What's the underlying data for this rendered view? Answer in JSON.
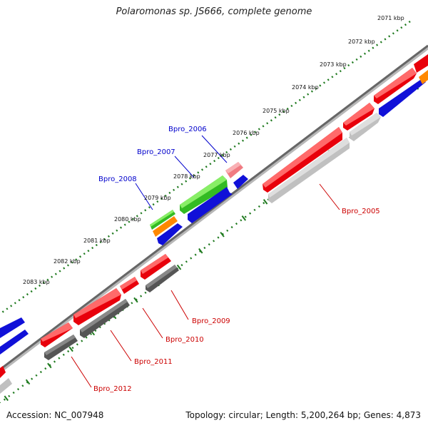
{
  "title": "Polaromonas sp. JS666, complete genome",
  "footer": {
    "accession": "Accession: NC_007948",
    "summary": "Topology: circular; Length: 5,200,264 bp; Genes: 4,873"
  },
  "colors": {
    "backbone": "#777777",
    "ticks": "#1f7a1f",
    "forward_cds": "#e8000b",
    "reverse_cds": "#1010d8",
    "grey_feature": "#c0c0c0",
    "dark_feature": "#555555",
    "green_feature": "#33bb22",
    "orange_feature": "#ff8800",
    "pink_feature": "#f07b82",
    "label_red": "#cc0000",
    "label_blue": "#0000cc"
  },
  "scale_labels": [
    "2071 kbp",
    "2072 kbp",
    "2073 kbp",
    "2074 kbp",
    "2075 kbp",
    "2076 kbp",
    "2077 kbp",
    "2078 kbp",
    "2079 kbp",
    "2080 kbp",
    "2081 kbp",
    "2082 kbp",
    "2083 kbp"
  ],
  "gene_labels": [
    {
      "name": "Bpro_2005",
      "color": "red"
    },
    {
      "name": "Bpro_2006",
      "color": "blue"
    },
    {
      "name": "Bpro_2007",
      "color": "blue"
    },
    {
      "name": "Bpro_2008",
      "color": "blue"
    },
    {
      "name": "Bpro_2009",
      "color": "red"
    },
    {
      "name": "Bpro_2010",
      "color": "red"
    },
    {
      "name": "Bpro_2011",
      "color": "red"
    },
    {
      "name": "Bpro_2012",
      "color": "red"
    }
  ]
}
